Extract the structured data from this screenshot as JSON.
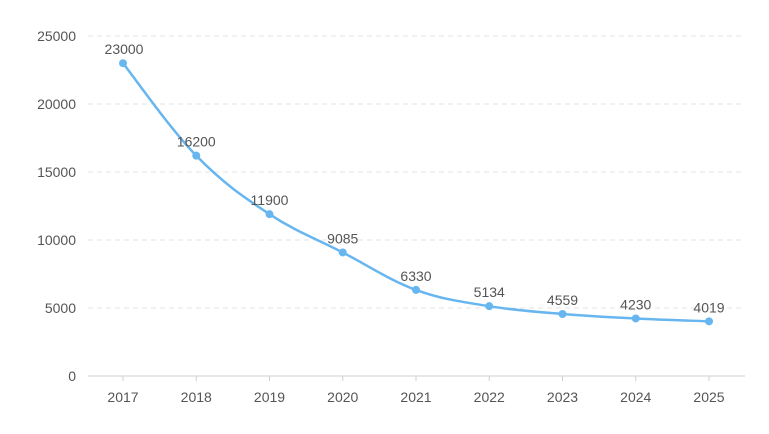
{
  "chart_data": {
    "type": "line",
    "categories": [
      "2017",
      "2018",
      "2019",
      "2020",
      "2021",
      "2022",
      "2023",
      "2024",
      "2025"
    ],
    "series": [
      {
        "values": [
          23000,
          16200,
          11900,
          9085,
          6330,
          5134,
          4559,
          4230,
          4019
        ]
      }
    ],
    "data_labels": [
      "23000",
      "16200",
      "11900",
      "9085",
      "6330",
      "5134",
      "4559",
      "4230",
      "4019"
    ],
    "y_ticks": [
      "0",
      "5000",
      "10000",
      "15000",
      "20000",
      "25000"
    ],
    "ylim": [
      0,
      25000
    ],
    "grid": "horizontal dashed",
    "legend": "none",
    "colors": {
      "line": "#67b6ef",
      "grid": "#e3e3e3",
      "axis": "#cfcfcf",
      "text": "#555555"
    }
  }
}
